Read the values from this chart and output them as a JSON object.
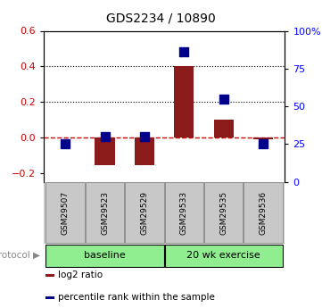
{
  "title": "GDS2234 / 10890",
  "samples": [
    "GSM29507",
    "GSM29523",
    "GSM29529",
    "GSM29533",
    "GSM29535",
    "GSM29536"
  ],
  "log2_ratio": [
    0.0,
    -0.155,
    -0.155,
    0.4,
    0.1,
    -0.01
  ],
  "percentile_rank": [
    25,
    30,
    30,
    86,
    55,
    25
  ],
  "bar_color": "#8B1A1A",
  "dot_color": "#00008B",
  "ylim_left": [
    -0.25,
    0.6
  ],
  "ylim_right": [
    0,
    100
  ],
  "yticks_left": [
    -0.2,
    0.0,
    0.2,
    0.4,
    0.6
  ],
  "yticks_right": [
    0,
    25,
    50,
    75,
    100
  ],
  "ytick_labels_right": [
    "0",
    "25",
    "50",
    "75",
    "100%"
  ],
  "protocol_label": "protocol",
  "legend_items": [
    {
      "color": "#8B1A1A",
      "label": "log2 ratio"
    },
    {
      "color": "#00008B",
      "label": "percentile rank within the sample"
    }
  ],
  "background_color": "#ffffff",
  "dashed_zero_color": "#CC0000",
  "bar_width": 0.5,
  "dot_size": 55,
  "sample_box_color": "#C8C8C8",
  "baseline_color": "#90EE90",
  "exercise_color": "#90EE90"
}
